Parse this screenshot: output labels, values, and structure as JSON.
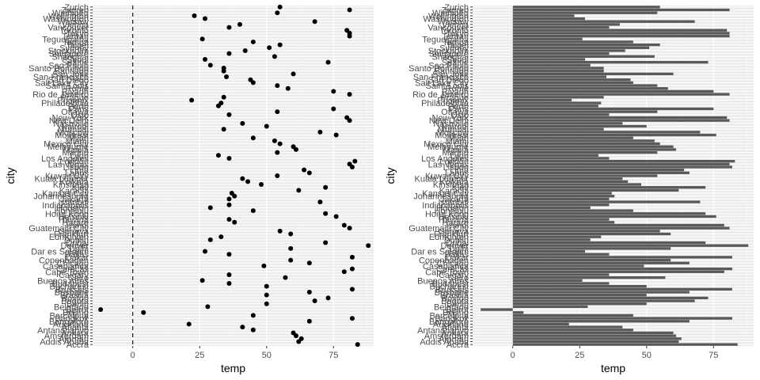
{
  "chart_data": [
    {
      "type": "scatter",
      "xlabel": "temp",
      "ylabel": "city",
      "x_ticks": [
        0,
        25,
        50,
        75
      ],
      "xlim": [
        -15,
        90
      ],
      "reference_line": {
        "x": 0,
        "style": "dashed"
      },
      "grid": true,
      "categories": [
        "Accra",
        "Addis Ababa",
        "Amman",
        "Amsterdam",
        "Ankara",
        "Antananarivo",
        "Atlanta",
        "Auckland",
        "Bangalore",
        "Bangkok",
        "Barcelona",
        "Beijing",
        "Beirut",
        "Belgrade",
        "Berlin",
        "Bogota",
        "Boston",
        "Brasilia",
        "Brisbane",
        "Brussels",
        "Bucharest",
        "Budapest",
        "Buenos Aires",
        "Cairo",
        "Calgary",
        "Cape Town",
        "Caracas",
        "Casablanca",
        "Chicago",
        "Copenhagen",
        "Dakar",
        "Dallas",
        "Dar es Salaam",
        "Delhi",
        "Denver",
        "Dubai",
        "Dublin",
        "Edmonton",
        "Frankfurt",
        "Geneva",
        "Guatemala City",
        "Hanoi",
        "Harare",
        "Havana",
        "Helsinki",
        "Hong Kong",
        "Honolulu",
        "Houston",
        "Indianapolis",
        "Istanbul",
        "Jakarta",
        "Johannesburg",
        "Kansas City",
        "Karachi",
        "Kiev",
        "Kinshasa",
        "Kolkata",
        "Kuala Lumpur",
        "Kuwait City",
        "Lagos",
        "Lima",
        "Lisbon",
        "Las Vegas",
        "London",
        "Los Angeles",
        "Lyon",
        "Madrid",
        "Manila",
        "Melbourne",
        "Mexico City",
        "Miami",
        "Milan",
        "Montreal",
        "Moscow",
        "Mumbai",
        "Nairobi",
        "Nashville",
        "New Delhi",
        "New York",
        "Oslo",
        "Ottawa",
        "Paris",
        "Perth",
        "Philadelphia",
        "Phoenix",
        "Prague",
        "Rio de Janeiro",
        "Riyadh",
        "Rome",
        "Saint Louis",
        "Salt Lake City",
        "San Diego",
        "San Francisco",
        "San Jose",
        "Santiago",
        "Santo Domingo",
        "Sao Paulo",
        "Seattle",
        "Seoul",
        "Shanghai",
        "Singapore",
        "Stockholm",
        "Sydney",
        "Taipei",
        "Tampa",
        "Tegucigalpa",
        "Tehran",
        "Tokyo",
        "Toronto",
        "Vancouver",
        "Vienna",
        "Warsaw",
        "Washington",
        "Wellington",
        "Winnipeg",
        "Zagreb",
        "Zurich"
      ],
      "values": [
        84,
        62,
        63,
        61,
        60,
        45,
        41,
        21,
        66,
        82,
        45,
        4,
        -12,
        28,
        50,
        68,
        73,
        50,
        66,
        82,
        50,
        36,
        26,
        57,
        36,
        79,
        82,
        49,
        66,
        59,
        82,
        36,
        27,
        59,
        88,
        72,
        29,
        33,
        59,
        55,
        81,
        79,
        38,
        36,
        76,
        72,
        45,
        29,
        36,
        70,
        36,
        38,
        37,
        62,
        72,
        48,
        43,
        41,
        54,
        66,
        64,
        82,
        81,
        83,
        36,
        32,
        54,
        61,
        60,
        55,
        53,
        45,
        76,
        70,
        34,
        50,
        41,
        81,
        80,
        36,
        54,
        75,
        32,
        33,
        22,
        34,
        81,
        75,
        58,
        54,
        45,
        44,
        35,
        60,
        34,
        34,
        29,
        73,
        27,
        53,
        36,
        42,
        51,
        55,
        45,
        26,
        81,
        81,
        80,
        36,
        40,
        68,
        27,
        23,
        54,
        81,
        55
      ]
    },
    {
      "type": "bar",
      "orientation": "horizontal",
      "xlabel": "temp",
      "ylabel": "city",
      "x_ticks": [
        0,
        25,
        50,
        75
      ],
      "xlim": [
        -15,
        90
      ],
      "grid": true,
      "categories": [
        "Accra",
        "Addis Ababa",
        "Amman",
        "Amsterdam",
        "Ankara",
        "Antananarivo",
        "Atlanta",
        "Auckland",
        "Bangalore",
        "Bangkok",
        "Barcelona",
        "Beijing",
        "Beirut",
        "Belgrade",
        "Berlin",
        "Bogota",
        "Boston",
        "Brasilia",
        "Brisbane",
        "Brussels",
        "Bucharest",
        "Budapest",
        "Buenos Aires",
        "Cairo",
        "Calgary",
        "Cape Town",
        "Caracas",
        "Casablanca",
        "Chicago",
        "Copenhagen",
        "Dakar",
        "Dallas",
        "Dar es Salaam",
        "Delhi",
        "Denver",
        "Dubai",
        "Dublin",
        "Edmonton",
        "Frankfurt",
        "Geneva",
        "Guatemala City",
        "Hanoi",
        "Harare",
        "Havana",
        "Helsinki",
        "Hong Kong",
        "Honolulu",
        "Houston",
        "Indianapolis",
        "Istanbul",
        "Jakarta",
        "Johannesburg",
        "Kansas City",
        "Karachi",
        "Kiev",
        "Kinshasa",
        "Kolkata",
        "Kuala Lumpur",
        "Kuwait City",
        "Lagos",
        "Lima",
        "Lisbon",
        "Las Vegas",
        "London",
        "Los Angeles",
        "Lyon",
        "Madrid",
        "Manila",
        "Melbourne",
        "Mexico City",
        "Miami",
        "Milan",
        "Montreal",
        "Moscow",
        "Mumbai",
        "Nairobi",
        "Nashville",
        "New Delhi",
        "New York",
        "Oslo",
        "Ottawa",
        "Paris",
        "Perth",
        "Philadelphia",
        "Phoenix",
        "Prague",
        "Rio de Janeiro",
        "Riyadh",
        "Rome",
        "Saint Louis",
        "Salt Lake City",
        "San Diego",
        "San Francisco",
        "San Jose",
        "Santiago",
        "Santo Domingo",
        "Sao Paulo",
        "Seattle",
        "Seoul",
        "Shanghai",
        "Singapore",
        "Stockholm",
        "Sydney",
        "Taipei",
        "Tampa",
        "Tegucigalpa",
        "Tehran",
        "Tokyo",
        "Toronto",
        "Vancouver",
        "Vienna",
        "Warsaw",
        "Washington",
        "Wellington",
        "Winnipeg",
        "Zagreb",
        "Zurich"
      ],
      "values": [
        84,
        62,
        63,
        61,
        60,
        45,
        41,
        21,
        66,
        82,
        45,
        4,
        -12,
        28,
        50,
        68,
        73,
        50,
        66,
        82,
        50,
        36,
        26,
        57,
        36,
        79,
        82,
        49,
        66,
        59,
        82,
        36,
        27,
        59,
        88,
        72,
        29,
        33,
        59,
        55,
        81,
        79,
        38,
        36,
        76,
        72,
        45,
        29,
        36,
        70,
        36,
        38,
        37,
        62,
        72,
        48,
        43,
        41,
        54,
        66,
        64,
        82,
        81,
        83,
        36,
        32,
        54,
        61,
        60,
        55,
        53,
        45,
        76,
        70,
        34,
        50,
        41,
        81,
        80,
        36,
        54,
        75,
        32,
        33,
        22,
        34,
        81,
        75,
        58,
        54,
        45,
        44,
        35,
        60,
        34,
        34,
        29,
        73,
        27,
        53,
        36,
        42,
        51,
        55,
        45,
        26,
        81,
        81,
        80,
        36,
        40,
        68,
        27,
        23,
        54,
        81,
        55
      ]
    }
  ]
}
